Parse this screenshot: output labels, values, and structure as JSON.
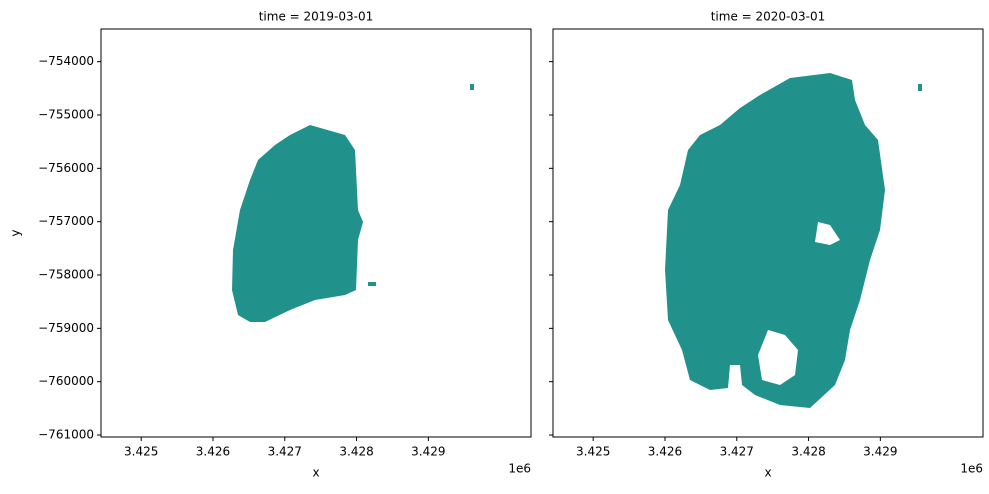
{
  "chart_data": [
    {
      "type": "raster",
      "title": "time = 2019-03-01",
      "xlabel": "x",
      "ylabel": "y",
      "x_offset_label": "1e6",
      "color": "#21918c",
      "xlim": [
        3.42444,
        3.43043
      ],
      "ylim": [
        -761037,
        -753388
      ],
      "xticks": [
        3.425,
        3.426,
        3.427,
        3.428,
        3.429
      ],
      "yticks": [
        {
          "value": -761000,
          "label": "−761000"
        },
        {
          "value": -760000,
          "label": "−760000"
        },
        {
          "value": -759000,
          "label": "−759000"
        },
        {
          "value": -758000,
          "label": "−758000"
        },
        {
          "value": -757000,
          "label": "−757000"
        },
        {
          "value": -756000,
          "label": "−756000"
        },
        {
          "value": -755000,
          "label": "−755000"
        },
        {
          "value": -754000,
          "label": "−754000"
        }
      ]
    },
    {
      "type": "raster",
      "title": "time = 2020-03-01",
      "xlabel": "x",
      "x_offset_label": "1e6",
      "color": "#21918c",
      "sharey": true,
      "xlim": [
        3.42444,
        3.43043
      ],
      "ylim": [
        -761037,
        -753388
      ],
      "xticks": [
        3.425,
        3.426,
        3.427,
        3.428,
        3.429
      ]
    }
  ]
}
